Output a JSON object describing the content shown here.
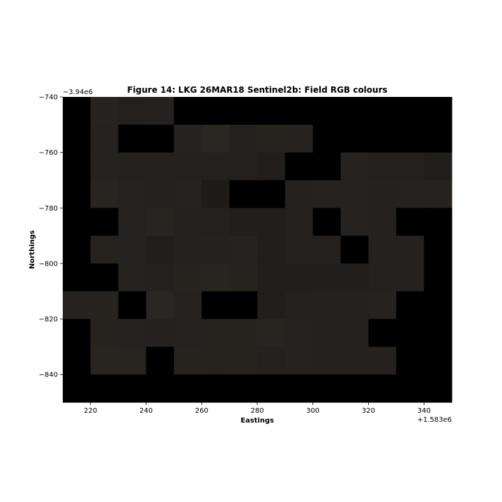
{
  "chart_data": {
    "type": "heatmap",
    "title": "Figure 14: LKG 26MAR18  Sentinel2b: Field RGB colours",
    "xlabel": "Eastings",
    "ylabel": "Northings",
    "x_offset_label": "+1.583e6",
    "y_offset_label": "−3.94e6",
    "xlim": [
      210,
      350
    ],
    "ylim": [
      -850,
      -740
    ],
    "x_ticks": [
      220,
      240,
      260,
      280,
      300,
      320,
      340
    ],
    "x_tick_labels": [
      "220",
      "240",
      "260",
      "280",
      "300",
      "320",
      "340"
    ],
    "y_ticks": [
      -740,
      -760,
      -780,
      -800,
      -820,
      -840
    ],
    "y_tick_labels": [
      "−740",
      "−760",
      "−780",
      "−800",
      "−820",
      "−840"
    ],
    "cell_size": 10,
    "x_start": 210,
    "y_top": -740,
    "background_color": "#000000",
    "grid": [
      [
        "#000000",
        "#262320",
        "#23201d",
        "#24211e",
        "#000000",
        "#000000",
        "#000000",
        "#000000",
        "#000000",
        "#000000",
        "#000000",
        "#000000",
        "#000000",
        "#000000"
      ],
      [
        "#000000",
        "#25221f",
        "#000000",
        "#000000",
        "#25221f",
        "#2a2622",
        "#24211e",
        "#26231f",
        "#25221f",
        "#000000",
        "#000000",
        "#000000",
        "#000000",
        "#000000"
      ],
      [
        "#000000",
        "#25221f",
        "#24211e",
        "#24211e",
        "#24211e",
        "#23201d",
        "#23201d",
        "#211e1b",
        "#000000",
        "#000000",
        "#25221f",
        "#23201d",
        "#23201d",
        "#1f1e1b"
      ],
      [
        "#000000",
        "#282420",
        "#25221f",
        "#24211e",
        "#25221f",
        "#1e1b18",
        "#000000",
        "#000000",
        "#24211e",
        "#25221f",
        "#25221f",
        "#24211e",
        "#25221f",
        "#25221f"
      ],
      [
        "#000000",
        "#000000",
        "#25221f",
        "#282420",
        "#24211e",
        "#23201d",
        "#211e1b",
        "#211e1b",
        "#23201d",
        "#000000",
        "#25221f",
        "#24211e",
        "#000000",
        "#000000"
      ],
      [
        "#000000",
        "#26231f",
        "#25221f",
        "#211e1b",
        "#24211e",
        "#24211e",
        "#25221f",
        "#211e1b",
        "#23201d",
        "#23201d",
        "#000000",
        "#24211e",
        "#24211e",
        "#000000"
      ],
      [
        "#000000",
        "#000000",
        "#25221f",
        "#24211e",
        "#27231f",
        "#282420",
        "#27231f",
        "#211e1b",
        "#211e1b",
        "#211e1b",
        "#211e1b",
        "#23201d",
        "#24211e",
        "#000000"
      ],
      [
        "#262320",
        "#27231f",
        "#000000",
        "#2a2622",
        "#25221f",
        "#000000",
        "#000000",
        "#211e1b",
        "#23201d",
        "#24211e",
        "#24211e",
        "#26231f",
        "#000000",
        "#000000"
      ],
      [
        "#000000",
        "#27231f",
        "#25221f",
        "#24211e",
        "#25221f",
        "#26231f",
        "#27231f",
        "#282420",
        "#25221f",
        "#24211e",
        "#24211e",
        "#000000",
        "#000000",
        "#000000"
      ],
      [
        "#000000",
        "#282420",
        "#282420",
        "#000000",
        "#27231f",
        "#26231f",
        "#27231f",
        "#24211e",
        "#25221f",
        "#24211e",
        "#24211e",
        "#24211e",
        "#000000",
        "#000000"
      ],
      [
        "#000000",
        "#000000",
        "#000000",
        "#000000",
        "#000000",
        "#000000",
        "#000000",
        "#000000",
        "#000000",
        "#000000",
        "#000000",
        "#000000",
        "#000000",
        "#000000"
      ]
    ]
  }
}
